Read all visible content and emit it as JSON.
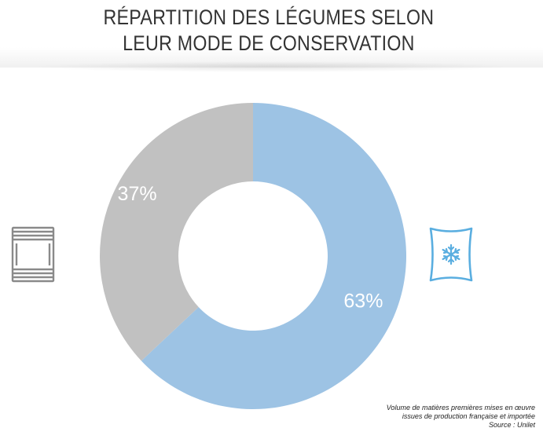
{
  "chart_data": {
    "type": "pie",
    "title": [
      "RÉPARTITION DES LÉGUMES SELON",
      "LEUR MODE DE CONSERVATION"
    ],
    "slices": [
      {
        "label": "63%",
        "value": 63,
        "color": "#9dc3e4",
        "icon": "snowflake-bag-icon"
      },
      {
        "label": "37%",
        "value": 37,
        "color": "#c1c1c1",
        "icon": "canned-tin-icon"
      }
    ]
  },
  "footnote": {
    "line1": "Volume de matières premières mises en œuvre",
    "line2": "issues de production française et importée",
    "line3": "Source : Unilet"
  },
  "colors": {
    "frozen": "#9dc3e4",
    "canned": "#c1c1c1",
    "frozen_icon": "#5aaee0",
    "canned_icon": "#8a8a8a"
  }
}
